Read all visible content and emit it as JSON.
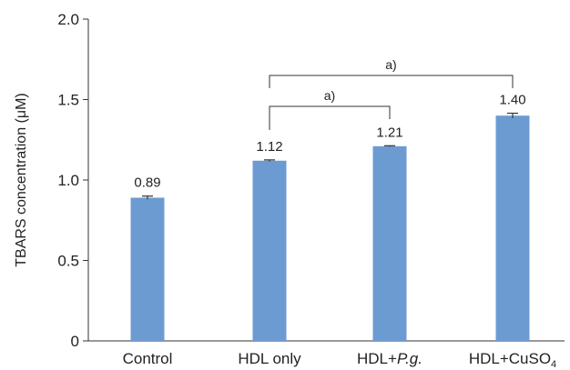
{
  "chart_data": {
    "type": "bar",
    "title": "",
    "xlabel": "",
    "ylabel": "TBARS concentration (μM)",
    "ylim": [
      0,
      2.0
    ],
    "yticks": [
      "0",
      "0.5",
      "1.0",
      "1.5",
      "2.0"
    ],
    "ytick_values": [
      0,
      0.5,
      1.0,
      1.5,
      2.0
    ],
    "grid": false,
    "bar_color": "#6c9bd2",
    "categories": [
      {
        "plain": "Control"
      },
      {
        "plain": "HDL only"
      },
      {
        "prefix": "HDL+",
        "italic": "P.g."
      },
      {
        "prefix": "HDL+CuSO",
        "sub": "4"
      }
    ],
    "values": [
      0.89,
      1.12,
      1.21,
      1.4
    ],
    "value_labels": [
      "0.89",
      "1.12",
      "1.21",
      "1.40"
    ],
    "errors": [
      0.01,
      0.005,
      0.003,
      0.015
    ],
    "significance": [
      {
        "from": 1,
        "to": 2,
        "label": "a)"
      },
      {
        "from": 1,
        "to": 3,
        "label": "a)"
      }
    ]
  }
}
